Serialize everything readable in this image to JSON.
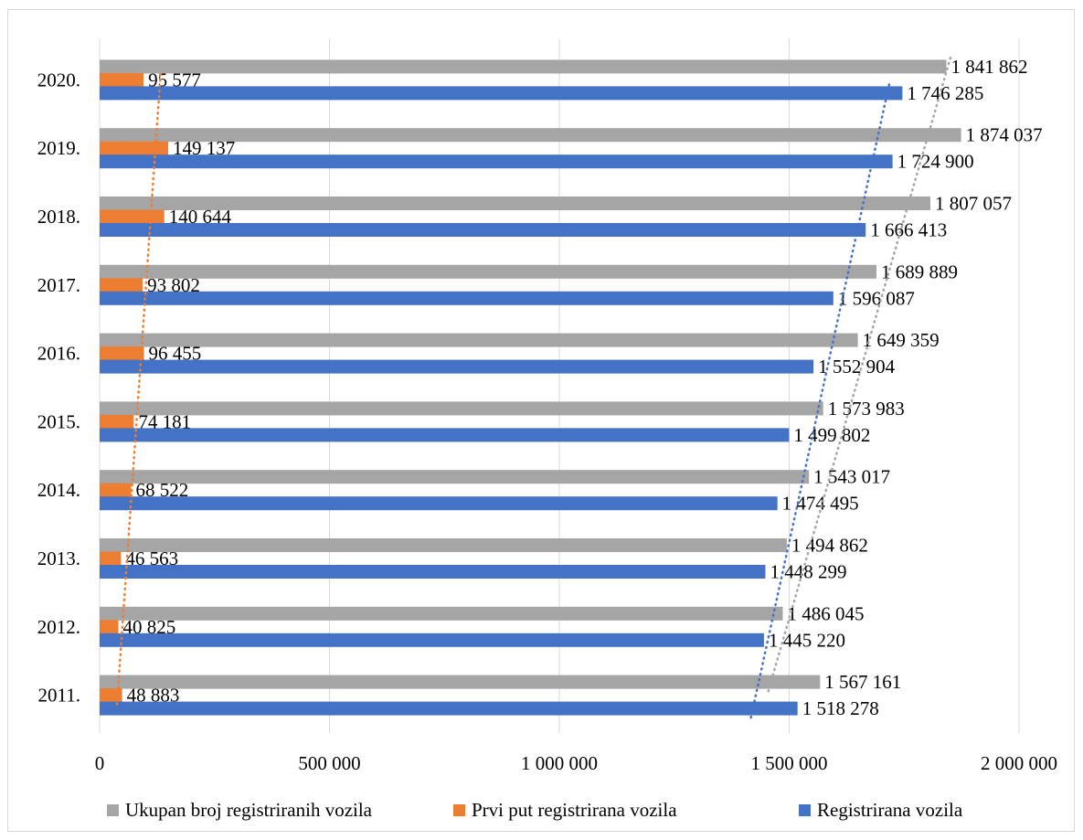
{
  "chart_data": {
    "type": "bar",
    "orientation": "horizontal",
    "categories": [
      "2011.",
      "2012.",
      "2013.",
      "2014.",
      "2015.",
      "2016.",
      "2017.",
      "2018.",
      "2019.",
      "2020."
    ],
    "series": [
      {
        "name": "Ukupan broj registriranih vozila",
        "color": "#a5a5a5",
        "values": [
          1567161,
          1486045,
          1494862,
          1543017,
          1573983,
          1649359,
          1689889,
          1807057,
          1874037,
          1841862
        ],
        "labels": [
          "1 567 161",
          "1 486 045",
          "1 494 862",
          "1 543 017",
          "1 573 983",
          "1 649 359",
          "1 689 889",
          "1 807 057",
          "1 874 037",
          "1 841 862"
        ]
      },
      {
        "name": "Prvi put registrirana vozila",
        "color": "#ed7d31",
        "values": [
          48883,
          40825,
          46563,
          68522,
          74181,
          96455,
          93802,
          140644,
          149137,
          95577
        ],
        "labels": [
          "48 883",
          "40 825",
          "46 563",
          "68 522",
          "74 181",
          "96 455",
          "93 802",
          "140 644",
          "149 137",
          "95 577"
        ]
      },
      {
        "name": "Registrirana vozila",
        "color": "#4472c4",
        "values": [
          1518278,
          1445220,
          1448299,
          1474495,
          1499802,
          1552904,
          1596087,
          1666413,
          1724900,
          1746285
        ],
        "labels": [
          "1 518 278",
          "1 445 220",
          "1 448 299",
          "1 474 495",
          "1 499 802",
          "1 552 904",
          "1 596 087",
          "1 666 413",
          "1 724 900",
          "1 746 285"
        ]
      }
    ],
    "x_ticks": [
      0,
      500000,
      1000000,
      1500000,
      2000000
    ],
    "x_tick_labels": [
      "0",
      "500 000",
      "1 000 000",
      "1 500 000",
      "2 000 000"
    ],
    "xlim": [
      0,
      2000000
    ],
    "trendlines": "linear, dotted, one per series",
    "grid": "vertical",
    "legend_position": "bottom"
  }
}
